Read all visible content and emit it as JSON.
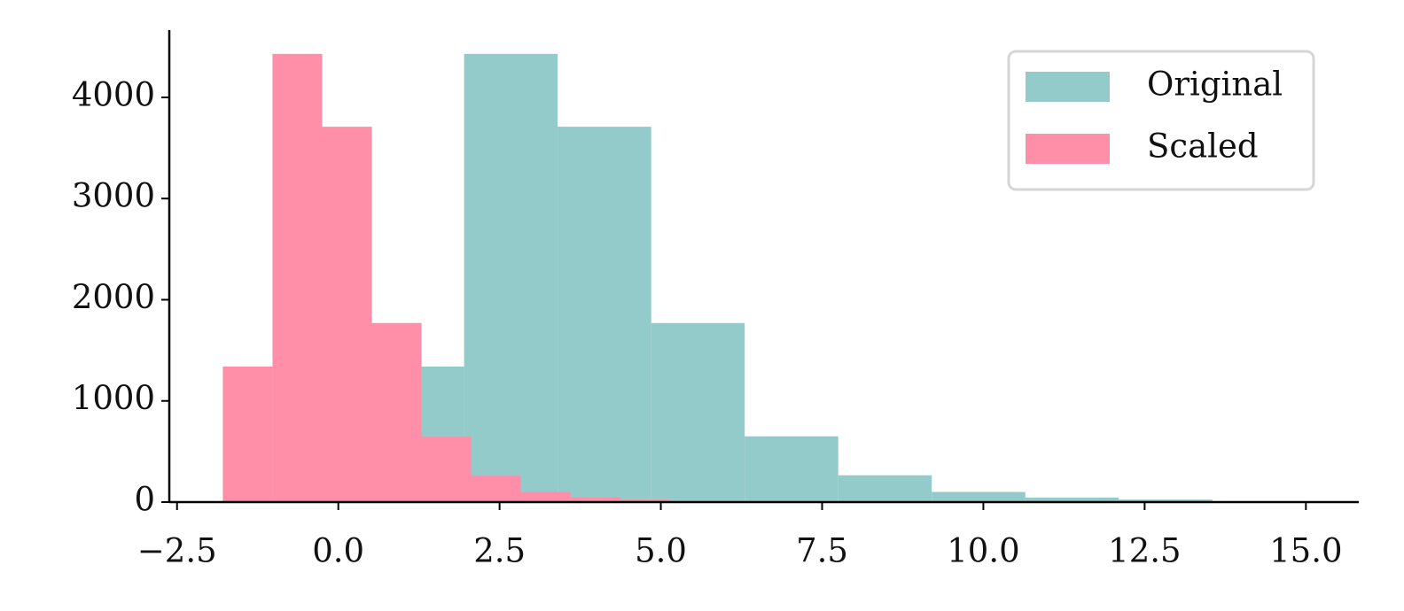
{
  "chart_data": {
    "type": "histogram",
    "series": [
      {
        "name": "Original",
        "color": "#93cbcb",
        "bins": [
          0.5,
          1.95,
          3.4,
          4.85,
          6.3,
          7.75,
          9.2,
          10.65,
          12.1,
          13.55,
          15.0
        ],
        "values": [
          1340,
          4430,
          3710,
          1770,
          650,
          265,
          100,
          45,
          25,
          10
        ]
      },
      {
        "name": "Scaled",
        "color": "#ff8fa9",
        "bins": [
          -1.79,
          -1.02,
          -0.25,
          0.52,
          1.29,
          2.06,
          2.83,
          3.6,
          4.37,
          5.14,
          5.91
        ],
        "values": [
          1340,
          4430,
          3710,
          1770,
          650,
          265,
          100,
          45,
          25,
          10
        ]
      }
    ],
    "xlim": [
      -2.62,
      15.82
    ],
    "ylim": [
      0,
      4665
    ],
    "xticks": [
      {
        "value": -2.5,
        "label": "−2.5"
      },
      {
        "value": 0,
        "label": "0.0"
      },
      2.5,
      {
        "value": 5,
        "label": "5.0"
      },
      7.5,
      {
        "value": 10,
        "label": "10.0"
      },
      12.5,
      {
        "value": 15,
        "label": "15.0"
      }
    ],
    "yticks": [
      0,
      1000,
      2000,
      3000,
      4000
    ],
    "legend": "upper right"
  }
}
